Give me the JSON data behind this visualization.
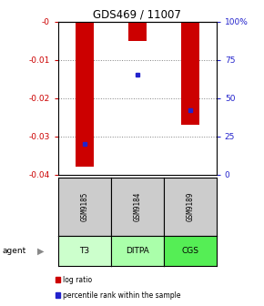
{
  "title": "GDS469 / 11007",
  "categories": [
    "T3",
    "DITPA",
    "CGS"
  ],
  "sample_ids": [
    "GSM9185",
    "GSM9184",
    "GSM9189"
  ],
  "log_ratios": [
    -0.038,
    -0.005,
    -0.027
  ],
  "percentile_ranks": [
    0.2,
    0.65,
    0.42
  ],
  "bar_color": "#cc0000",
  "dot_color": "#2222cc",
  "ylim_left": [
    -0.04,
    0.0
  ],
  "ylim_right": [
    0.0,
    1.0
  ],
  "yticks_left": [
    0.0,
    -0.01,
    -0.02,
    -0.03,
    -0.04
  ],
  "yticks_right": [
    0.0,
    0.25,
    0.5,
    0.75,
    1.0
  ],
  "ytick_labels_right": [
    "0",
    "25",
    "50",
    "75",
    "100%"
  ],
  "ytick_labels_left": [
    "-0",
    "-0.01",
    "-0.02",
    "-0.03",
    "-0.04"
  ],
  "agent_label": "agent",
  "agent_colors": [
    "#ccffcc",
    "#aaffaa",
    "#55ee55"
  ],
  "gsm_box_color": "#cccccc",
  "legend_bar_label": "log ratio",
  "legend_dot_label": "percentile rank within the sample",
  "bar_width": 0.35,
  "fig_width": 2.9,
  "fig_height": 3.36
}
